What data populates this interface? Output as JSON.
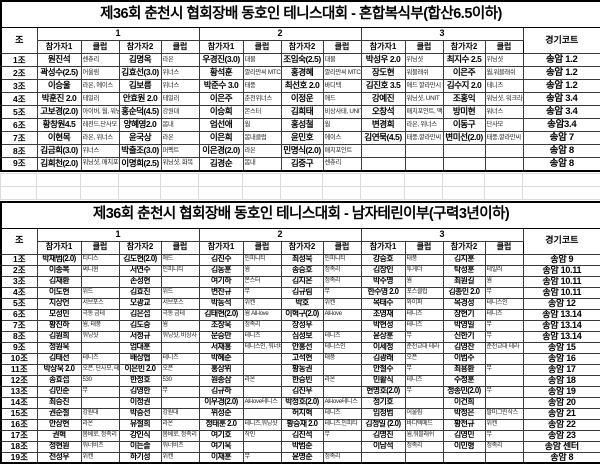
{
  "colors": {
    "border": "#000000",
    "background": "#ffffff",
    "text": "#000000",
    "faint_grid": "#dcdcdc"
  },
  "tables": [
    {
      "title": "제36회 춘천시 협회장배 동호인 테니스대회 - 혼합복식부(합산6.5이하)",
      "jo_label": "조",
      "court_label": "경기코트",
      "group_numbers": [
        "1",
        "2",
        "3"
      ],
      "sub_headers": [
        "참가자1",
        "클럽",
        "참가자2",
        "클럽"
      ],
      "rows": [
        {
          "jo": "1조",
          "cells": [
            [
              "원진석",
              "센츄리"
            ],
            [
              "김명옥",
              "라온"
            ],
            [
              "우경진(3.0)",
              "대물"
            ],
            [
              "조임숙(2.5)",
              "대물"
            ],
            [
              "박성우 2.0",
              "위닝샷"
            ],
            [
              "최지수 2.5",
              "위닝샷"
            ]
          ],
          "court": "송암 1.2"
        },
        {
          "jo": "2조",
          "cells": [
            [
              "곽성수(2.5)",
              "어울림"
            ],
            [
              "김효선(3.0)",
              "위너스"
            ],
            [
              "황석훈",
              "깔라만씨 MTC"
            ],
            [
              "홍경혜",
              "깔라만씨 MTC"
            ],
            [
              "장도현",
              "워블래쉬"
            ],
            [
              "이은주",
              "웜,워블래쉬"
            ]
          ],
          "court": "송암 1.2"
        },
        {
          "jo": "3조",
          "cells": [
            [
              "이승울",
              "라온, 에이스"
            ],
            [
              "김보름",
              "위너스"
            ],
            [
              "박준수 3.0",
              "태풍"
            ],
            [
              "최선호 2.0",
              "바디텍"
            ],
            [
              "김진호 3.5",
              "애드 깔라만시 테"
            ],
            [
              "김수지 2.0",
              "테니즈"
            ]
          ],
          "court": "송암 1.2"
        },
        {
          "jo": "4조",
          "cells": [
            [
              "박훈진 2.0",
              "테일러"
            ],
            [
              "안효원 2.0",
              "테일러"
            ],
            [
              "이은주",
              "춘천위너스"
            ],
            [
              "이정운",
              "애드"
            ],
            [
              "강예진",
              "워닝샷, UNIT"
            ],
            [
              "조홍익",
              "워닝샷, 워크라"
            ]
          ],
          "court": "송암 3.4"
        },
        {
          "jo": "5조",
          "cells": [
            [
              "고보경(2.0)",
              "아이버, 웜, 워닝샷"
            ],
            [
              "홍순덕(4.5)",
              "강원대"
            ],
            [
              "이승희",
              "몬스터"
            ],
            [
              "김희태",
              "비상사태, UNIT"
            ],
            [
              "오창석",
              "매치포인트, 맥두"
            ],
            [
              "방미현",
              "워너스"
            ]
          ],
          "court": "송암 3.4"
        },
        {
          "jo": "6조",
          "cells": [
            [
              "황창원4.5",
              "레전드,단사모"
            ],
            [
              "양혜영2.0",
              "봄내"
            ],
            [
              "엄선애",
              "웜"
            ],
            [
              "홍성철",
              "웜"
            ],
            [
              "변경희",
              "라온, 위너스"
            ],
            [
              "이동구",
              "단사모"
            ]
          ],
          "court": "송암3.4"
        },
        {
          "jo": "7조",
          "cells": [
            [
              "이현목",
              "라온, 위너스"
            ],
            [
              "윤국상",
              "라온"
            ],
            [
              "이은희",
              "봄내클럽"
            ],
            [
              "윤민호",
              "에이스"
            ],
            [
              "김연묵(4.5)",
              "태풍,깔라만씨"
            ],
            [
              "변미선(2.0)",
              "태풍,깔라만씨"
            ]
          ],
          "court": "송암 7"
        },
        {
          "jo": "8조",
          "cells": [
            [
              "김금희(3.0)",
              "위너스"
            ],
            [
              "박출조(3.0)",
              "퍼펙트"
            ],
            [
              "이은경(2.0)",
              "라온"
            ],
            [
              "민명식(2.0)",
              "매치포인트"
            ],
            [
              "",
              ""
            ],
            [
              "",
              ""
            ]
          ],
          "court": "송암 8"
        },
        {
          "jo": "9조",
          "cells": [
            [
              "김희천(2.0)",
              "워닝샷, 매치포인"
            ],
            [
              "이명희(2.5)",
              "워닝샷, 화목"
            ],
            [
              "김경순",
              "봄내"
            ],
            [
              "김중구",
              "센츄리"
            ],
            [
              "",
              ""
            ],
            [
              "",
              ""
            ]
          ],
          "court": "송암 8"
        }
      ]
    },
    {
      "title": "제36회 춘천시 협회장배 동호인 테니스대회 - 남자테린이부(구력3년이하)",
      "jo_label": "조",
      "court_label": "경기코트",
      "group_numbers": [
        "1",
        "2",
        "3"
      ],
      "sub_headers": [
        "참가자1",
        "클럽",
        "참가자2",
        "클럽"
      ],
      "rows": [
        {
          "jo": "1조",
          "cells": [
            [
              "박재범(2.0)",
              "티디스"
            ],
            [
              "김도현(2.0)",
              "애드"
            ],
            [
              "김진수",
              "인피니티"
            ],
            [
              "최성묵",
              "인피니티"
            ],
            [
              "강승호",
              "태풍"
            ],
            [
              "김지훈",
              ""
            ]
          ],
          "court": "송암 9"
        },
        {
          "jo": "2조",
          "cells": [
            [
              "이종복",
              "써니윈"
            ],
            [
              "서연수",
              "인피니티"
            ],
            [
              "김동훈",
              "웜"
            ],
            [
              "송승호",
              "정족리"
            ],
            [
              "김창인",
              "투게더"
            ],
            [
              "탁성훈",
              "테일러"
            ]
          ],
          "court": "송암 10.11"
        },
        {
          "jo": "3조",
          "cells": [
            [
              "김재환",
              ""
            ],
            [
              "손성현",
              ""
            ],
            [
              "여기하",
              "몬스터"
            ],
            [
              "김지온",
              "정족리"
            ],
            [
              "박주명",
              "웜"
            ],
            [
              "최원길",
              "웜"
            ]
          ],
          "court": "송암 10.11"
        },
        {
          "jo": "4조",
          "cells": [
            [
              "이도현",
              "위드"
            ],
            [
              "김효진",
              "위드"
            ],
            [
              "변찬규",
              "무"
            ],
            [
              "김규림",
              "무"
            ],
            [
              "한수영 2.0",
              "포스클럽"
            ],
            [
              "김총인 2.0",
              "무"
            ]
          ],
          "court": "송암 10.11"
        },
        {
          "jo": "5조",
          "cells": [
            [
              "지상언",
              "서브포스"
            ],
            [
              "오광교",
              "서브포스"
            ],
            [
              "박동석",
              "위캔"
            ],
            [
              "박호",
              "위캔"
            ],
            [
              "목태수",
              "와이퍼"
            ],
            [
              "목경성",
              "테니스인"
            ]
          ],
          "court": "송암 12"
        },
        {
          "jo": "6조",
          "cells": [
            [
              "모성민",
              "극동 금테"
            ],
            [
              "김은섭",
              "극동 금테"
            ],
            [
              "김태현(2.0)",
              "웜 All-love"
            ],
            [
              "이혁구(2.0)",
              "All-love"
            ],
            [
              "조영재",
              "테니즈"
            ],
            [
              "장현기",
              "테니즈"
            ]
          ],
          "court": "송암 13.14"
        },
        {
          "jo": "7조",
          "cells": [
            [
              "황진하",
              "웜, 태풍"
            ],
            [
              "김도중",
              "웜"
            ],
            [
              "조창욱",
              "정족리"
            ],
            [
              "장성우",
              ""
            ],
            [
              "박현성",
              "테니즈"
            ],
            [
              "박영일",
              "무"
            ]
          ],
          "court": "송암 13.14"
        },
        {
          "jo": "8조",
          "cells": [
            [
              "김원희",
              "워닝샷"
            ],
            [
              "서정규",
              "워닝샷, 비상사"
            ],
            [
              "문승만",
              "테니즈"
            ],
            [
              "심성보",
              "테니즈"
            ],
            [
              "윤상훈",
              "무"
            ],
            [
              "신한기",
              "무"
            ]
          ],
          "court": "송암 13.14"
        },
        {
          "jo": "9조",
          "cells": [
            [
              "정원욱",
              ""
            ],
            [
              "엄대훈",
              ""
            ],
            [
              "서재홍",
              "테니스인, 워너비"
            ],
            [
              "안홍선",
              "테니스인"
            ],
            [
              "이세정",
              "춘천교대 테라"
            ],
            [
              "김영찬",
              "춘천교대 테라"
            ]
          ],
          "court": "송암 15"
        },
        {
          "jo": "10조",
          "cells": [
            [
              "김태선",
              "테니즈"
            ],
            [
              "배상협",
              "테니즈"
            ],
            [
              "박혜준",
              ""
            ],
            [
              "고석현",
              "태풍"
            ],
            [
              "김광래",
              "오픈"
            ],
            [
              "이범주",
              ""
            ]
          ],
          "court": "송암 16"
        },
        {
          "jo": "11조",
          "cells": [
            [
              "박상욱 2.0",
              "오픈, 단사모, 테니"
            ],
            [
              "이은빈 2.0",
              "오픈"
            ],
            [
              "홍상위",
              ""
            ],
            [
              "황동권",
              ""
            ],
            [
              "안철수",
              "무"
            ],
            [
              "최용환",
              "무"
            ]
          ],
          "court": "송암 17"
        },
        {
          "jo": "12조",
          "cells": [
            [
              "송효섭",
              "530"
            ],
            [
              "한정호",
              "530"
            ],
            [
              "원종삼",
              "라온"
            ],
            [
              "한승빈",
              "라온"
            ],
            [
              "민활식",
              "테니즈"
            ],
            [
              "주정훈",
              ""
            ]
          ],
          "court": "송암 18"
        },
        {
          "jo": "13조",
          "cells": [
            [
              "김민준",
              "무"
            ],
            [
              "김영한",
              "무"
            ],
            [
              "김규하",
              ""
            ],
            [
              "김진우",
              ""
            ],
            [
              "현명호(2.0)",
              "무"
            ],
            [
              "정종민(2.0)",
              "무"
            ]
          ],
          "court": "송암 19"
        },
        {
          "jo": "14조",
          "cells": [
            [
              "최승진",
              ""
            ],
            [
              "이정권",
              ""
            ],
            [
              "이우경(2.0)",
              "All-love테니스"
            ],
            [
              "박정호(2.0)",
              "All-love테니스"
            ],
            [
              "정기호",
              ""
            ],
            [
              "이건희",
              ""
            ]
          ],
          "court": "송암 20"
        },
        {
          "jo": "15조",
          "cells": [
            [
              "권순철",
              "강원대"
            ],
            [
              "박중선",
              "강원대"
            ],
            [
              "위성준",
              ""
            ],
            [
              "허지혁",
              "테니즈"
            ],
            [
              "임청범",
              "어울림"
            ],
            [
              "박정은",
              "팔미그린삭스"
            ]
          ],
          "court": "송암 21"
        },
        {
          "jo": "16조",
          "cells": [
            [
              "안상현",
              "라온"
            ],
            [
              "유철희",
              "라온"
            ],
            [
              "정태훈 2.0",
              "테니즈,워닝샷"
            ],
            [
              "황승재 2.0",
              "테니즈,인피티"
            ],
            [
              "김정일 (2.0)",
              "바디텍메드"
            ],
            [
              "황천규",
              "위캔"
            ]
          ],
          "court": "송암 22"
        },
        {
          "jo": "17조",
          "cells": [
            [
              "권혁",
              "몸베로, 정족리"
            ],
            [
              "강인식",
              "몸베로, 정족리"
            ],
            [
              "여기호",
              "작인"
            ],
            [
              "김진석",
              "무"
            ],
            [
              "김명진",
              "웜,워블래쉬"
            ],
            [
              "김영민",
              "무"
            ]
          ],
          "court": "송암 23"
        },
        {
          "jo": "18조",
          "cells": [
            [
              "정현원",
              "워너비즈"
            ],
            [
              "이든솔",
              "워너비즈"
            ],
            [
              "여기욱",
              ""
            ],
            [
              "박범준",
              ""
            ],
            [
              "이남석",
              "정족리"
            ],
            [
              "이민형",
              "정족리"
            ]
          ],
          "court": "송암 센터"
        },
        {
          "jo": "19조",
          "cells": [
            [
              "전성우",
              "위캔"
            ],
            [
              "하기성",
              "위캔"
            ],
            [
              "이재훈",
              "무"
            ],
            [
              "윤명준",
              "정족리"
            ],
            [
              "",
              ""
            ],
            [
              "",
              ""
            ]
          ],
          "court": "송암 8"
        }
      ]
    }
  ]
}
